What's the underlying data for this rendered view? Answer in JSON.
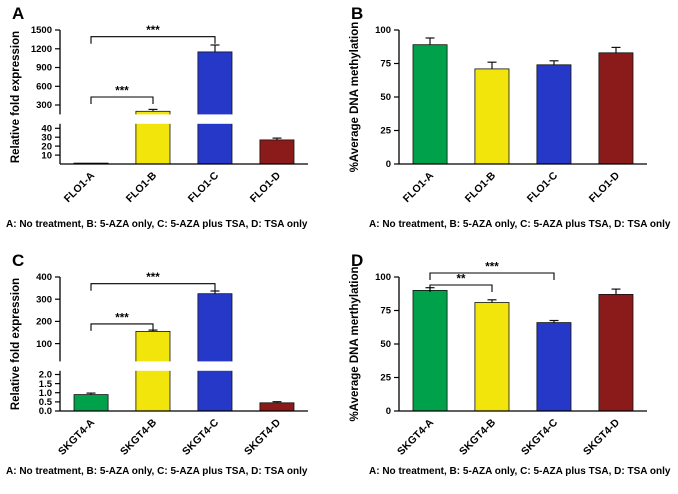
{
  "colors": {
    "green": "#00A14B",
    "yellow": "#F2E50B",
    "blue": "#2638C8",
    "darkred": "#8B1A1A",
    "axis": "#000000"
  },
  "chart_data": [
    {
      "panel_label": "A",
      "type": "bar",
      "ylabel": "Relative fold expression",
      "categories": [
        "FLO1-A",
        "FLO1-B",
        "FLO1-C",
        "FLO1-D"
      ],
      "values": [
        1,
        200,
        1150,
        27
      ],
      "errors": [
        0,
        30,
        110,
        2
      ],
      "bar_colors": [
        "green",
        "yellow",
        "blue",
        "darkred"
      ],
      "axis_break": true,
      "lower_ticks": [
        "10",
        "20",
        "30",
        "40"
      ],
      "upper_ticks": [
        "300",
        "600",
        "900",
        "1200",
        "1500"
      ],
      "lower_max": 45,
      "upper_min": 150,
      "upper_max": 1500,
      "significance": [
        {
          "from": 0,
          "to": 1,
          "label": "***",
          "y_frac": 0.5
        },
        {
          "from": 0,
          "to": 2,
          "label": "***",
          "y_frac": 0.05
        }
      ],
      "caption": "A: No treatment, B: 5-AZA only, C: 5-AZA plus TSA, D: TSA only"
    },
    {
      "panel_label": "B",
      "type": "bar",
      "ylabel": "%Average DNA methylation",
      "categories": [
        "FLO1-A",
        "FLO1-B",
        "FLO1-C",
        "FLO1-D"
      ],
      "values": [
        89,
        71,
        74,
        83
      ],
      "errors": [
        5,
        5,
        3,
        4
      ],
      "bar_colors": [
        "green",
        "yellow",
        "blue",
        "darkred"
      ],
      "axis_break": false,
      "ticks": [
        "0",
        "25",
        "50",
        "75",
        "100"
      ],
      "ymax": 100,
      "significance": [],
      "caption": "A: No treatment, B: 5-AZA only, C: 5-AZA plus TSA, D: TSA only"
    },
    {
      "panel_label": "C",
      "type": "bar",
      "ylabel": "Relative fold expression",
      "categories": [
        "SKGT4-A",
        "SKGT4-B",
        "SKGT4-C",
        "SKGT4-D"
      ],
      "values": [
        0.9,
        155,
        325,
        0.45
      ],
      "errors": [
        0.08,
        6,
        12,
        0.06
      ],
      "bar_colors": [
        "green",
        "yellow",
        "blue",
        "darkred"
      ],
      "axis_break": true,
      "lower_ticks": [
        "0.0",
        "0.5",
        "1.0",
        "1.5",
        "2.0"
      ],
      "upper_ticks": [
        "100",
        "200",
        "300",
        "400"
      ],
      "lower_max": 2.2,
      "upper_min": 20,
      "upper_max": 400,
      "significance": [
        {
          "from": 0,
          "to": 1,
          "label": "***",
          "y_frac": 0.35
        },
        {
          "from": 0,
          "to": 2,
          "label": "***",
          "y_frac": 0.05
        }
      ],
      "caption": "A: No treatment, B: 5-AZA only, C: 5-AZA plus TSA, D: TSA only"
    },
    {
      "panel_label": "D",
      "type": "bar",
      "ylabel": "%Average DNA merthylation",
      "categories": [
        "SKGT4-A",
        "SKGT4-B",
        "SKGT4-C",
        "SKGT4-D"
      ],
      "values": [
        90,
        81,
        66,
        87
      ],
      "errors": [
        2,
        2,
        1.5,
        4
      ],
      "bar_colors": [
        "green",
        "yellow",
        "blue",
        "darkred"
      ],
      "axis_break": false,
      "ticks": [
        "0",
        "25",
        "50",
        "75",
        "100"
      ],
      "ymax": 100,
      "significance": [
        {
          "from": 0,
          "to": 1,
          "label": "**",
          "y_frac": 0.06
        },
        {
          "from": 0,
          "to": 2,
          "label": "***",
          "y_frac": -0.03
        }
      ],
      "caption": "A: No treatment, B: 5-AZA only, C: 5-AZA plus TSA, D: TSA only"
    }
  ]
}
